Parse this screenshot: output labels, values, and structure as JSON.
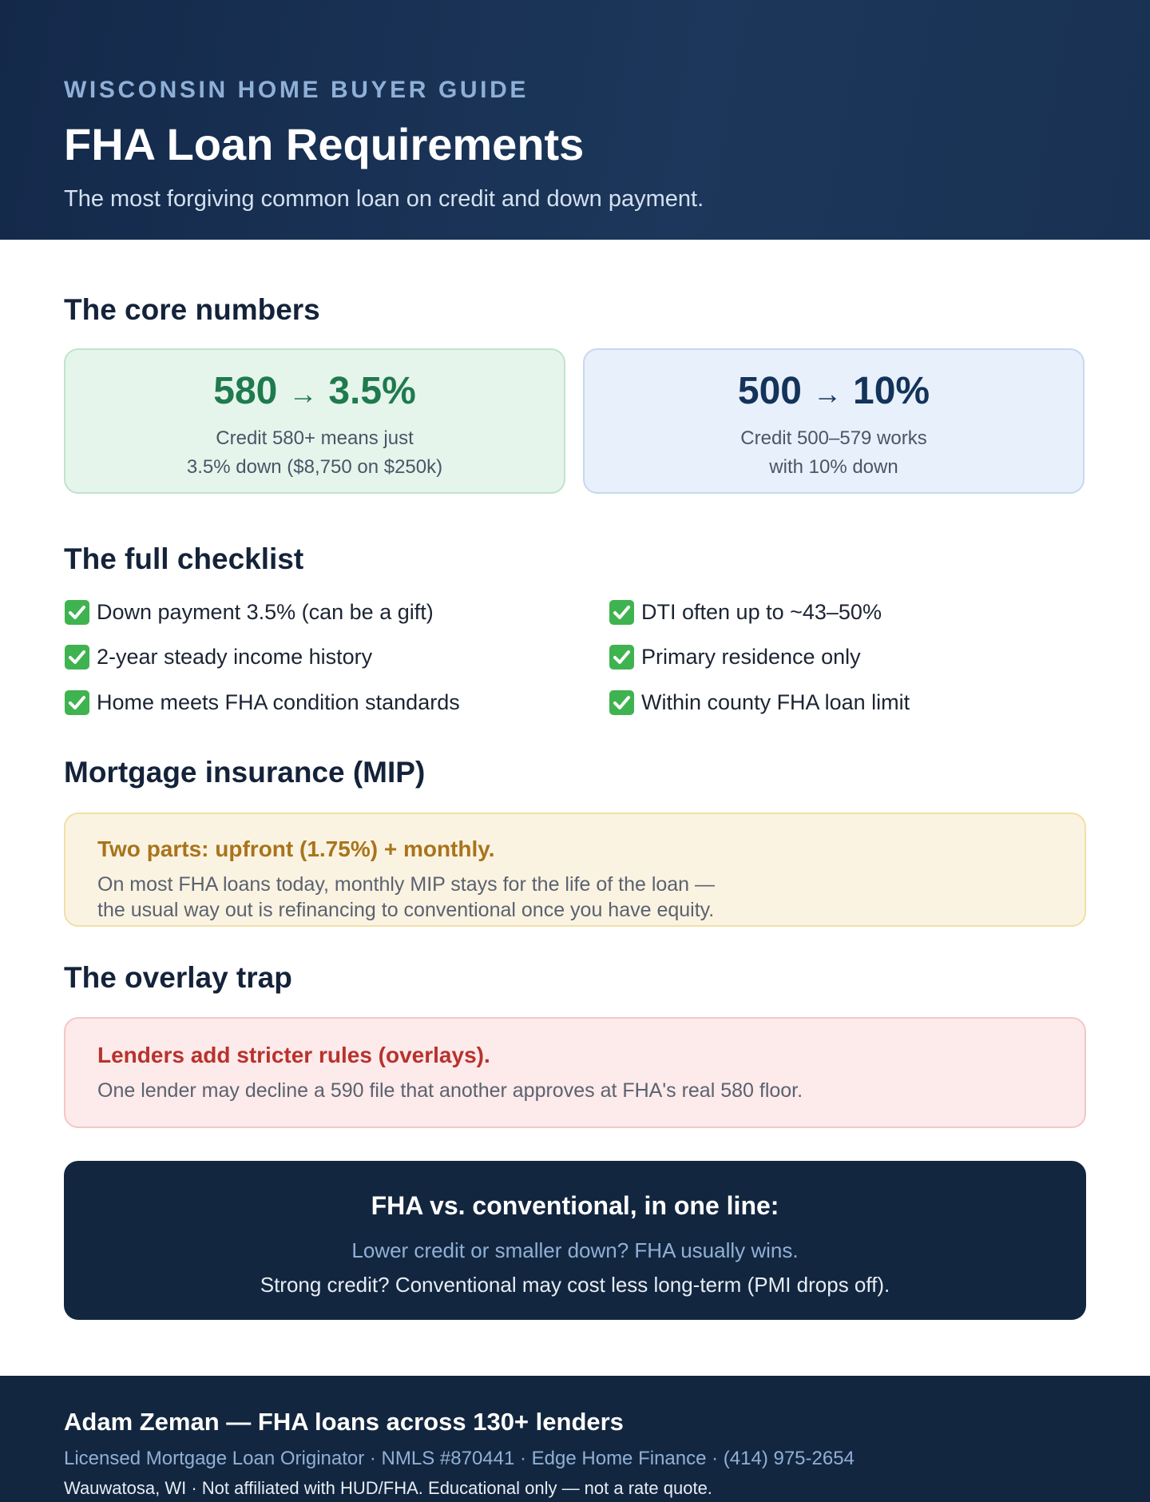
{
  "header": {
    "eyebrow": "WISCONSIN HOME BUYER GUIDE",
    "title": "FHA Loan Requirements",
    "subtitle": "The most forgiving common loan on credit and down payment."
  },
  "core": {
    "heading": "The core numbers",
    "cards": [
      {
        "from": "580",
        "arrow": "→",
        "to": "3.5%",
        "lines": [
          "Credit 580+ means just",
          "3.5% down ($8,750 on $250k)"
        ]
      },
      {
        "from": "500",
        "arrow": "→",
        "to": "10%",
        "lines": [
          "Credit 500–579 works",
          "with 10% down"
        ]
      }
    ]
  },
  "checklist": {
    "heading": "The full checklist",
    "items": [
      "Down payment 3.5% (can be a gift)",
      "2-year steady income history",
      "Home meets FHA condition standards",
      "DTI often up to ~43–50%",
      "Primary residence only",
      "Within county FHA loan limit"
    ]
  },
  "mip": {
    "heading": "Mortgage insurance (MIP)",
    "title": "Two parts: upfront (1.75%) + monthly.",
    "lines": [
      "On most FHA loans today, monthly MIP stays for the life of the loan —",
      "the usual way out is refinancing to conventional once you have equity."
    ]
  },
  "overlay": {
    "heading": "The overlay trap",
    "title": "Lenders add stricter rules (overlays).",
    "body": "One lender may decline a 590 file that another approves at FHA's real 580 floor."
  },
  "summary": {
    "title": "FHA vs. conventional, in one line:",
    "line1": "Lower credit or smaller down? FHA usually wins.",
    "line2": "Strong credit? Conventional may cost less long-term (PMI drops off)."
  },
  "footer": {
    "name": "Adam Zeman — FHA loans across 130+ lenders",
    "meta": "Licensed Mortgage Loan Originator · NMLS #870441 · Edge Home Finance · (414) 975-2654",
    "note": "Wauwatosa, WI · Not affiliated with HUD/FHA. Educational only — not a rate quote."
  }
}
